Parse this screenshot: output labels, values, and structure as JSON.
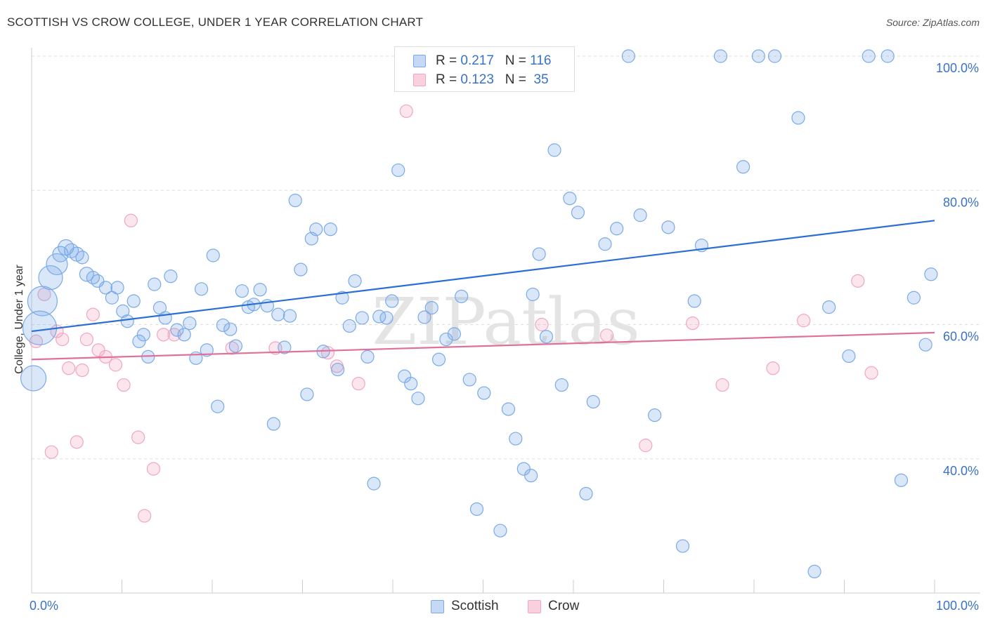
{
  "title": "SCOTTISH VS CROW COLLEGE, UNDER 1 YEAR CORRELATION CHART",
  "source": "Source: ZipAtlas.com",
  "watermark": "ZIPatlas",
  "legend_stats": [
    {
      "r_label": "R =",
      "r": "0.217",
      "n_label": "N =",
      "n": "116"
    },
    {
      "r_label": "R =",
      "r": "0.123",
      "n_label": "N =",
      "n": "35"
    }
  ],
  "chart_data": {
    "type": "scatter",
    "title": "SCOTTISH VS CROW COLLEGE, UNDER 1 YEAR CORRELATION CHART",
    "xlabel": "",
    "ylabel": "College, Under 1 year",
    "xlim": [
      0,
      100
    ],
    "ylim": [
      20,
      100
    ],
    "x_tick_labels": [
      "0.0%",
      "100.0%"
    ],
    "y_ticks": [
      40,
      60,
      80,
      100
    ],
    "y_tick_labels": [
      "40.0%",
      "60.0%",
      "80.0%",
      "100.0%"
    ],
    "grid": "horizontal dashed",
    "legend_position": "bottom",
    "series": [
      {
        "name": "Scottish",
        "color": "#7aaae8",
        "trend": [
          [
            0,
            59.0
          ],
          [
            100,
            75.5
          ]
        ],
        "x": [
          0.2,
          0.9,
          1.2,
          2.1,
          2.8,
          3.2,
          3.8,
          4.4,
          5.0,
          5.6,
          6.1,
          6.8,
          7.3,
          8.2,
          8.9,
          9.5,
          10.1,
          10.6,
          11.3,
          11.9,
          12.4,
          12.9,
          13.6,
          14.2,
          14.8,
          15.4,
          16.1,
          16.9,
          17.5,
          18.2,
          18.8,
          19.4,
          20.1,
          20.6,
          21.2,
          22.0,
          22.6,
          23.3,
          24.0,
          24.6,
          25.3,
          26.1,
          26.8,
          27.3,
          28.0,
          28.6,
          29.2,
          29.8,
          30.5,
          31.0,
          31.5,
          32.3,
          33.1,
          33.9,
          34.4,
          35.2,
          35.8,
          36.6,
          37.2,
          37.9,
          38.5,
          39.3,
          39.9,
          40.6,
          41.3,
          42.0,
          42.8,
          43.5,
          44.3,
          45.1,
          45.9,
          46.8,
          47.6,
          48.5,
          49.3,
          50.1,
          51.0,
          51.9,
          52.8,
          53.6,
          54.5,
          55.3,
          56.2,
          57.0,
          57.9,
          58.7,
          59.6,
          60.5,
          61.4,
          62.2,
          63.5,
          64.8,
          66.1,
          67.4,
          69.0,
          70.5,
          72.1,
          74.2,
          76.3,
          78.8,
          80.5,
          82.3,
          84.9,
          86.7,
          88.3,
          90.5,
          92.7,
          94.8,
          96.3,
          97.7,
          99.0,
          99.6,
          46.5,
          50.8,
          73.4,
          55.5
        ],
        "y": [
          52.0,
          59.5,
          63.5,
          67.0,
          69.0,
          70.5,
          71.5,
          71.0,
          70.5,
          70.0,
          67.5,
          67.0,
          66.5,
          65.5,
          64.0,
          65.5,
          62.0,
          60.5,
          63.5,
          57.5,
          58.5,
          55.2,
          66.0,
          62.5,
          61.0,
          67.2,
          59.2,
          58.5,
          60.2,
          55.0,
          65.3,
          56.2,
          70.3,
          47.8,
          59.9,
          59.3,
          56.8,
          65.0,
          62.6,
          63.0,
          65.2,
          62.8,
          45.2,
          61.5,
          56.6,
          61.3,
          78.5,
          68.2,
          49.6,
          72.8,
          74.2,
          56.0,
          74.2,
          53.3,
          64.0,
          59.8,
          66.5,
          61.0,
          55.2,
          36.3,
          61.2,
          61.0,
          63.5,
          83.0,
          52.3,
          51.2,
          49.0,
          61.1,
          62.5,
          54.8,
          57.8,
          58.6,
          64.2,
          51.8,
          32.5,
          49.8,
          100.0,
          29.3,
          47.4,
          43.0,
          38.5,
          37.5,
          70.5,
          58.2,
          86.0,
          51.0,
          78.8,
          76.7,
          34.8,
          48.5,
          72.0,
          74.3,
          100.0,
          76.3,
          46.5,
          74.5,
          27.0,
          71.8,
          100.0,
          83.5,
          100.0,
          100.0,
          90.8,
          23.2,
          62.6,
          55.3,
          100.0,
          100.0,
          36.8,
          64.0,
          57.0,
          67.5,
          100.0,
          100.0,
          63.5,
          64.5
        ],
        "size": [
          18,
          24,
          21,
          17,
          15,
          11,
          11,
          10,
          10,
          9,
          10,
          9,
          9,
          9,
          9,
          9,
          9,
          9,
          9,
          9,
          9,
          9,
          9,
          9,
          9,
          9,
          9,
          9,
          9,
          9,
          9,
          9,
          9,
          9,
          9,
          9,
          9,
          9,
          9,
          9,
          9,
          9,
          9,
          9,
          9,
          9,
          9,
          9,
          9,
          9,
          9,
          9,
          9,
          9,
          9,
          9,
          9,
          9,
          9,
          9,
          9,
          9,
          9,
          9,
          9,
          9,
          9,
          9,
          9,
          9,
          9,
          9,
          9,
          9,
          9,
          9,
          9,
          9,
          9,
          9,
          9,
          9,
          9,
          9,
          9,
          9,
          9,
          9,
          9,
          9,
          9,
          9,
          9,
          9,
          9,
          9,
          9,
          9,
          9,
          9,
          9,
          9,
          9,
          9,
          9,
          9,
          9,
          9,
          9,
          9,
          9,
          9,
          9,
          9,
          9,
          9
        ]
      },
      {
        "name": "Crow",
        "color": "#f2a6bf",
        "trend": [
          [
            0,
            54.8
          ],
          [
            100,
            58.8
          ]
        ],
        "x": [
          0.5,
          1.4,
          2.2,
          2.8,
          3.4,
          4.1,
          5.0,
          5.6,
          6.1,
          6.8,
          7.4,
          8.2,
          9.3,
          10.2,
          11.0,
          11.8,
          12.5,
          13.5,
          14.6,
          15.8,
          22.2,
          27.0,
          32.8,
          33.8,
          36.2,
          41.5,
          56.5,
          63.7,
          68.0,
          73.2,
          76.5,
          82.1,
          85.5,
          91.5,
          93.0
        ],
        "y": [
          57.5,
          64.5,
          41.0,
          59.0,
          57.8,
          53.5,
          42.5,
          53.2,
          57.8,
          61.5,
          56.2,
          55.2,
          54.0,
          51.0,
          75.5,
          43.2,
          31.5,
          38.5,
          58.5,
          58.5,
          56.5,
          56.5,
          55.8,
          53.8,
          51.2,
          91.8,
          60.0,
          58.4,
          42.0,
          60.2,
          51.0,
          53.5,
          60.6,
          66.5,
          52.8
        ],
        "size": [
          9,
          9,
          9,
          9,
          9,
          9,
          9,
          9,
          9,
          9,
          9,
          9,
          9,
          9,
          9,
          9,
          9,
          9,
          9,
          9,
          9,
          9,
          9,
          9,
          9,
          9,
          9,
          9,
          9,
          9,
          9,
          9,
          9,
          9,
          9
        ]
      }
    ]
  }
}
